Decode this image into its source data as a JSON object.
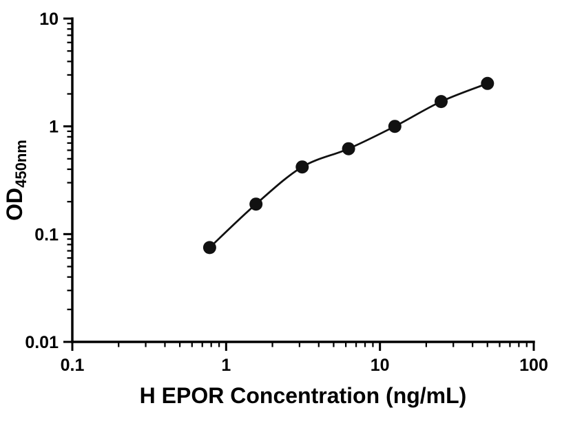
{
  "chart_data": {
    "type": "scatter",
    "title": "",
    "xlabel": "H EPOR Concentration (ng/mL)",
    "ylabel_main": "OD",
    "ylabel_sub": "450nm",
    "xscale": "log",
    "yscale": "log",
    "xlim": [
      0.1,
      100
    ],
    "ylim": [
      0.01,
      10
    ],
    "x": [
      0.781,
      1.563,
      3.125,
      6.25,
      12.5,
      25,
      50
    ],
    "y": [
      0.075,
      0.19,
      0.42,
      0.62,
      1.0,
      1.7,
      2.5
    ],
    "x_major_ticks": [
      0.1,
      1,
      10,
      100
    ],
    "x_tick_labels": [
      "0.1",
      "1",
      "10",
      "100"
    ],
    "y_major_ticks": [
      0.01,
      0.1,
      1,
      10
    ],
    "y_tick_labels": [
      "0.01",
      "0.1",
      "1",
      "10"
    ],
    "grid": false,
    "legend": "none",
    "has_fit_line": true,
    "marker_color": "#111111",
    "line_color": "#111111",
    "axis_color": "#000000",
    "background": "#ffffff"
  }
}
